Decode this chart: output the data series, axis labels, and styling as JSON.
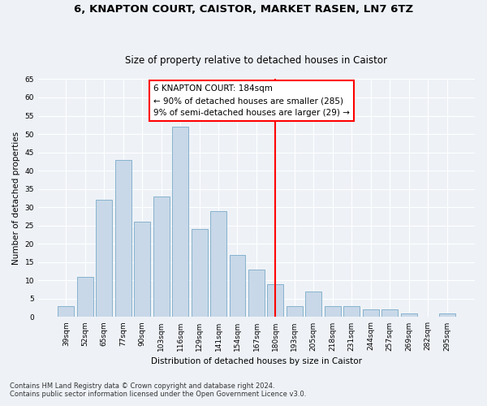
{
  "title1": "6, KNAPTON COURT, CAISTOR, MARKET RASEN, LN7 6TZ",
  "title2": "Size of property relative to detached houses in Caistor",
  "xlabel": "Distribution of detached houses by size in Caistor",
  "ylabel": "Number of detached properties",
  "categories": [
    "39sqm",
    "52sqm",
    "65sqm",
    "77sqm",
    "90sqm",
    "103sqm",
    "116sqm",
    "129sqm",
    "141sqm",
    "154sqm",
    "167sqm",
    "180sqm",
    "193sqm",
    "205sqm",
    "218sqm",
    "231sqm",
    "244sqm",
    "257sqm",
    "269sqm",
    "282sqm",
    "295sqm"
  ],
  "values": [
    3,
    11,
    32,
    43,
    26,
    33,
    52,
    24,
    29,
    17,
    13,
    9,
    3,
    7,
    3,
    3,
    2,
    2,
    1,
    0,
    1
  ],
  "bar_color": "#c8d8e8",
  "bar_edge_color": "#7aaac8",
  "vline_x": 11,
  "vline_color": "red",
  "annotation_text": "6 KNAPTON COURT: 184sqm\n← 90% of detached houses are smaller (285)\n9% of semi-detached houses are larger (29) →",
  "annotation_fontsize": 7.5,
  "ylim": [
    0,
    65
  ],
  "yticks": [
    0,
    5,
    10,
    15,
    20,
    25,
    30,
    35,
    40,
    45,
    50,
    55,
    60,
    65
  ],
  "background_color": "#eef2f7",
  "grid_color": "#ffffff",
  "footer1": "Contains HM Land Registry data © Crown copyright and database right 2024.",
  "footer2": "Contains public sector information licensed under the Open Government Licence v3.0.",
  "title_fontsize": 9.5,
  "subtitle_fontsize": 8.5,
  "axis_label_fontsize": 7.5,
  "tick_fontsize": 6.5,
  "footer_fontsize": 6.0
}
